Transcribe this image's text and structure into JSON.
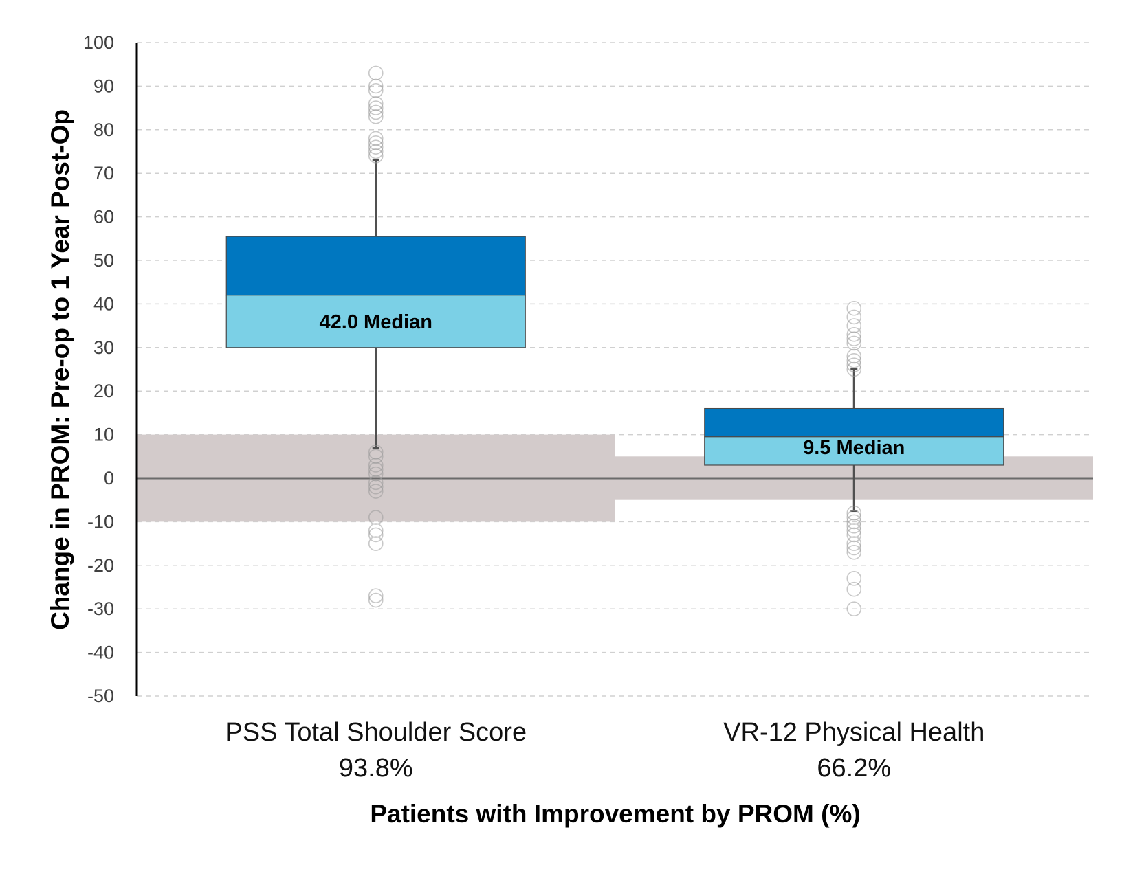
{
  "chart_data": {
    "type": "box",
    "xlabel": "Patients with Improvement by PROM (%)",
    "ylabel": "Change in PROM: Pre-op to 1 Year Post-Op",
    "ylim": [
      -50,
      100
    ],
    "yticks": [
      100,
      90,
      80,
      70,
      60,
      50,
      40,
      30,
      20,
      10,
      0,
      -10,
      -20,
      -30,
      -40,
      -50
    ],
    "ytick_labels": [
      "100",
      "90",
      "80",
      "70",
      "60",
      "50",
      "40",
      "30",
      "20",
      "10",
      "0",
      "-10",
      "-20",
      "-30",
      "-40",
      "-50"
    ],
    "grid": true,
    "gridline_style": "dashed",
    "categories": [
      {
        "name": "PSS Total Shoulder Score",
        "percent_label": "93.8%",
        "q1": 30,
        "median": 42,
        "q3": 55.5,
        "whisker_low": 7,
        "whisker_high": 73,
        "median_label": "42.0 Median",
        "mcid_band": [
          -10,
          10
        ],
        "outliers": [
          93,
          90,
          89,
          86,
          85,
          84,
          83,
          78,
          77,
          76,
          75,
          74,
          6,
          5,
          3,
          2,
          1,
          -1,
          -2,
          -3,
          -9,
          -12,
          -13,
          -15,
          -27,
          -28
        ]
      },
      {
        "name": "VR-12 Physical Health",
        "percent_label": "66.2%",
        "q1": 3,
        "median": 9.5,
        "q3": 16,
        "whisker_low": -7.5,
        "whisker_high": 25,
        "median_label": "9.5 Median",
        "mcid_band": [
          -5,
          5
        ],
        "outliers": [
          39,
          37,
          35,
          33,
          32,
          31,
          28,
          27,
          26,
          25,
          -8,
          -9,
          -10,
          -11,
          -12,
          -13,
          -15,
          -16,
          -17,
          -23,
          -25.5,
          -30
        ]
      }
    ],
    "colors": {
      "upper_box": "#0077C0",
      "lower_box": "#7BD0E6",
      "mcid_band": "#D3CBCB",
      "whisker": "#505050",
      "outlier": "#9A9A9A",
      "gridline": "#D0D0D0",
      "zero_line": "#6B6B6B",
      "axis": "#000000"
    }
  }
}
